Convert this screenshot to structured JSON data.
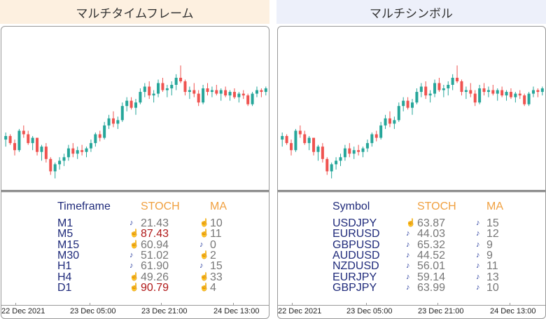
{
  "left": {
    "header": "マルチタイムフレーム",
    "col_name": "Timeframe",
    "col_stoch": "STOCH",
    "col_ma": "MA",
    "rows": [
      {
        "name": "M1",
        "stoch": "21.43",
        "stoch_dir": "down",
        "stoch_alert": false,
        "ma": "10",
        "ma_dir": "up"
      },
      {
        "name": "M5",
        "stoch": "87.43",
        "stoch_dir": "up",
        "stoch_alert": true,
        "ma": "11",
        "ma_dir": "up"
      },
      {
        "name": "M15",
        "stoch": "60.94",
        "stoch_dir": "up",
        "stoch_alert": false,
        "ma": "0",
        "ma_dir": "down"
      },
      {
        "name": "M30",
        "stoch": "51.02",
        "stoch_dir": "down",
        "stoch_alert": false,
        "ma": "2",
        "ma_dir": "up"
      },
      {
        "name": "H1",
        "stoch": "61.90",
        "stoch_dir": "down",
        "stoch_alert": false,
        "ma": "15",
        "ma_dir": "down"
      },
      {
        "name": "H4",
        "stoch": "49.26",
        "stoch_dir": "up",
        "stoch_alert": false,
        "ma": "33",
        "ma_dir": "up"
      },
      {
        "name": "D1",
        "stoch": "90.79",
        "stoch_dir": "up",
        "stoch_alert": true,
        "ma": "4",
        "ma_dir": "up"
      }
    ],
    "xaxis": [
      "22 Dec 2021",
      "23 Dec 05:00",
      "23 Dec 21:00",
      "24 Dec 13:00"
    ]
  },
  "right": {
    "header": "マルチシンボル",
    "col_name": "Symbol",
    "col_stoch": "STOCH",
    "col_ma": "MA",
    "rows": [
      {
        "name": "USDJPY",
        "stoch": "63.87",
        "stoch_dir": "up",
        "stoch_alert": false,
        "ma": "15",
        "ma_dir": "down"
      },
      {
        "name": "EURUSD",
        "stoch": "44.03",
        "stoch_dir": "down",
        "stoch_alert": false,
        "ma": "12",
        "ma_dir": "down"
      },
      {
        "name": "GBPUSD",
        "stoch": "65.32",
        "stoch_dir": "down",
        "stoch_alert": false,
        "ma": "9",
        "ma_dir": "down"
      },
      {
        "name": "AUDUSD",
        "stoch": "44.52",
        "stoch_dir": "down",
        "stoch_alert": false,
        "ma": "9",
        "ma_dir": "down"
      },
      {
        "name": "NZDUSD",
        "stoch": "56.01",
        "stoch_dir": "down",
        "stoch_alert": false,
        "ma": "11",
        "ma_dir": "down"
      },
      {
        "name": "EURJPY",
        "stoch": "59.14",
        "stoch_dir": "down",
        "stoch_alert": false,
        "ma": "13",
        "ma_dir": "down"
      },
      {
        "name": "GBPJPY",
        "stoch": "63.99",
        "stoch_dir": "down",
        "stoch_alert": false,
        "ma": "10",
        "ma_dir": "down"
      }
    ],
    "xaxis": [
      "22 Dec 2021",
      "23 Dec 05:00",
      "23 Dec 21:00",
      "24 Dec 13:00"
    ]
  },
  "icons": {
    "up": "finger-up-icon",
    "down": "finger-down-icon"
  },
  "colors": {
    "bull": "#26a69a",
    "bear": "#ef5350",
    "label": "#1f2a7a",
    "accent": "#f0a040",
    "alert": "#b01818",
    "value": "#777777"
  },
  "candles": [
    [
      118.2,
      118.6,
      117.8,
      118.4
    ],
    [
      118.4,
      118.5,
      117.9,
      118.0
    ],
    [
      118.0,
      118.2,
      117.3,
      117.6
    ],
    [
      117.6,
      118.8,
      117.5,
      118.7
    ],
    [
      118.7,
      119.0,
      118.3,
      118.5
    ],
    [
      118.5,
      118.7,
      117.9,
      118.0
    ],
    [
      118.0,
      118.4,
      117.6,
      118.3
    ],
    [
      118.3,
      118.3,
      117.3,
      117.5
    ],
    [
      117.5,
      117.9,
      117.0,
      117.8
    ],
    [
      117.8,
      118.0,
      116.9,
      117.1
    ],
    [
      117.1,
      117.2,
      116.2,
      116.4
    ],
    [
      116.4,
      116.9,
      116.0,
      116.8
    ],
    [
      116.8,
      117.2,
      116.5,
      117.0
    ],
    [
      117.0,
      117.4,
      116.7,
      117.2
    ],
    [
      117.2,
      117.9,
      117.0,
      117.7
    ],
    [
      117.7,
      118.0,
      117.2,
      117.4
    ],
    [
      117.4,
      117.8,
      117.1,
      117.6
    ],
    [
      117.6,
      117.9,
      117.3,
      117.5
    ],
    [
      117.5,
      117.8,
      117.2,
      117.7
    ],
    [
      117.7,
      118.2,
      117.5,
      118.0
    ],
    [
      118.0,
      118.6,
      117.8,
      118.5
    ],
    [
      118.5,
      118.7,
      118.1,
      118.3
    ],
    [
      118.3,
      119.2,
      118.2,
      119.0
    ],
    [
      119.0,
      119.6,
      118.8,
      119.4
    ],
    [
      119.4,
      119.8,
      118.9,
      119.1
    ],
    [
      119.1,
      119.5,
      118.8,
      119.3
    ],
    [
      119.3,
      120.3,
      119.2,
      120.1
    ],
    [
      120.1,
      120.6,
      119.8,
      120.4
    ],
    [
      120.4,
      120.6,
      119.9,
      120.0
    ],
    [
      120.0,
      120.5,
      119.6,
      120.3
    ],
    [
      120.3,
      121.1,
      120.2,
      120.9
    ],
    [
      120.9,
      121.4,
      120.6,
      121.2
    ],
    [
      121.2,
      121.5,
      120.5,
      120.7
    ],
    [
      120.7,
      121.0,
      120.3,
      120.8
    ],
    [
      120.8,
      121.6,
      120.6,
      121.4
    ],
    [
      121.4,
      121.7,
      120.9,
      121.0
    ],
    [
      121.0,
      121.3,
      120.6,
      121.1
    ],
    [
      121.1,
      121.5,
      120.7,
      121.3
    ],
    [
      121.3,
      121.9,
      121.0,
      121.7
    ],
    [
      121.7,
      122.4,
      121.4,
      121.5
    ],
    [
      121.5,
      121.6,
      120.7,
      120.9
    ],
    [
      120.9,
      121.2,
      120.5,
      121.0
    ],
    [
      121.0,
      121.4,
      120.6,
      120.8
    ],
    [
      120.8,
      121.0,
      120.1,
      120.3
    ],
    [
      120.3,
      121.3,
      120.2,
      121.1
    ],
    [
      121.1,
      121.4,
      120.7,
      120.9
    ],
    [
      120.9,
      121.2,
      120.6,
      121.0
    ],
    [
      121.0,
      121.3,
      120.7,
      120.8
    ],
    [
      120.8,
      121.1,
      120.4,
      121.0
    ],
    [
      121.0,
      121.2,
      120.6,
      120.7
    ],
    [
      120.7,
      121.0,
      120.4,
      120.9
    ],
    [
      120.9,
      121.1,
      120.5,
      120.6
    ],
    [
      120.6,
      120.9,
      120.3,
      120.8
    ],
    [
      120.8,
      121.0,
      120.5,
      120.7
    ],
    [
      120.7,
      120.8,
      120.1,
      120.2
    ],
    [
      120.2,
      120.9,
      120.1,
      120.8
    ],
    [
      120.8,
      121.2,
      120.6,
      121.0
    ],
    [
      121.0,
      121.1,
      120.6,
      120.9
    ],
    [
      120.9,
      121.2,
      120.7,
      121.1
    ]
  ]
}
